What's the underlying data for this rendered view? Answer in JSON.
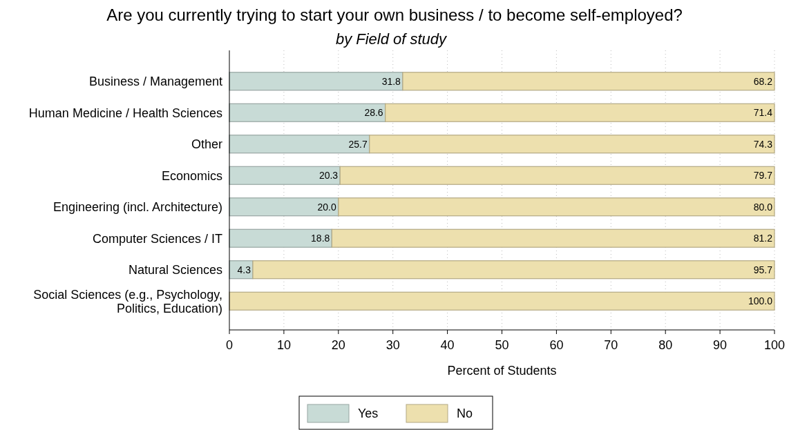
{
  "chart_data": {
    "type": "bar",
    "orientation": "horizontal",
    "stacked": true,
    "title": "Are you currently trying to start your own business / to become self-employed?",
    "subtitle": "by Field of study",
    "xlabel": "Percent of Students",
    "categories": [
      "Business / Management",
      "Human Medicine / Health Sciences",
      "Other",
      "Economics",
      "Engineering (incl. Architecture)",
      "Computer Sciences / IT",
      "Natural Sciences",
      "Social Sciences (e.g., Psychology, Politics, Education)"
    ],
    "series": [
      {
        "name": "Yes",
        "color": "#c8dbd6",
        "values": [
          31.8,
          28.6,
          25.7,
          20.3,
          20.0,
          18.8,
          4.3,
          0
        ],
        "value_labels": [
          "31.8",
          "28.6",
          "25.7",
          "20.3",
          "20.0",
          "18.8",
          "4.3",
          null
        ]
      },
      {
        "name": "No",
        "color": "#ede0ae",
        "values": [
          68.2,
          71.4,
          74.3,
          79.7,
          80.0,
          81.2,
          95.7,
          100.0
        ],
        "value_labels": [
          "68.2",
          "71.4",
          "74.3",
          "79.7",
          "80.0",
          "81.2",
          "95.7",
          "100.0"
        ]
      }
    ],
    "xlim": [
      0,
      100
    ],
    "xticks": [
      0,
      10,
      20,
      30,
      40,
      50,
      60,
      70,
      80,
      90,
      100
    ],
    "grid": "x",
    "legend": "bottom"
  }
}
